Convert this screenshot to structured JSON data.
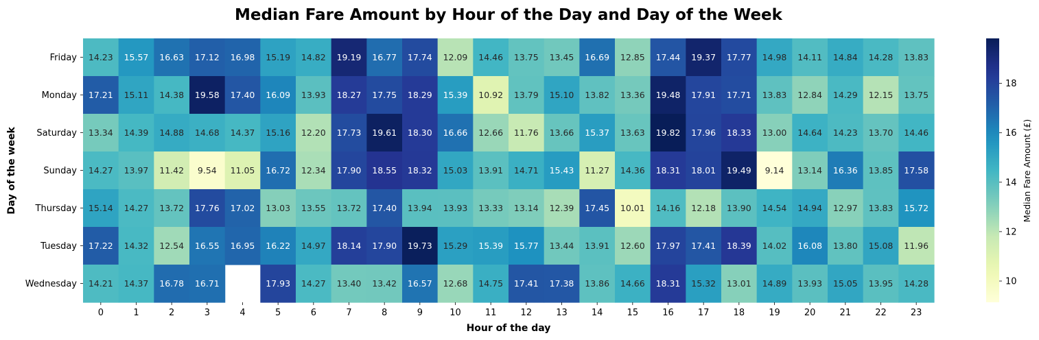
{
  "chart_data": {
    "type": "heatmap",
    "title": "Median Fare Amount by Hour of the Day and Day of the Week",
    "xlabel": "Hour of the day",
    "ylabel": "Day of the week",
    "colorbar_label": "Median Fare Amount (£)",
    "colorbar_ticks": [
      "10",
      "12",
      "14",
      "16",
      "18"
    ],
    "colorbar_range": [
      9.14,
      19.82
    ],
    "colormap": "YlGnBu",
    "x_categories": [
      "0",
      "1",
      "2",
      "3",
      "4",
      "5",
      "6",
      "7",
      "8",
      "9",
      "10",
      "11",
      "12",
      "13",
      "14",
      "15",
      "16",
      "17",
      "18",
      "19",
      "20",
      "21",
      "22",
      "23"
    ],
    "y_categories": [
      "Friday",
      "Monday",
      "Saturday",
      "Sunday",
      "Thursday",
      "Tuesday",
      "Wednesday"
    ],
    "values": [
      [
        14.23,
        15.57,
        16.63,
        17.12,
        16.98,
        15.19,
        14.82,
        19.19,
        16.77,
        17.74,
        12.09,
        14.46,
        13.75,
        13.45,
        16.69,
        12.85,
        17.44,
        19.37,
        17.77,
        14.98,
        14.11,
        14.84,
        14.28,
        13.83
      ],
      [
        17.21,
        15.11,
        14.38,
        19.58,
        17.4,
        16.09,
        13.93,
        18.27,
        17.75,
        18.29,
        15.39,
        10.92,
        13.79,
        15.1,
        13.82,
        13.36,
        19.48,
        17.91,
        17.71,
        13.83,
        12.84,
        14.29,
        12.15,
        13.75
      ],
      [
        13.34,
        14.39,
        14.88,
        14.68,
        14.37,
        15.16,
        12.2,
        17.73,
        19.61,
        18.3,
        16.66,
        12.66,
        11.76,
        13.66,
        15.37,
        13.63,
        19.82,
        17.96,
        18.33,
        13.0,
        14.64,
        14.23,
        13.7,
        14.46
      ],
      [
        14.27,
        13.97,
        11.42,
        9.54,
        11.05,
        16.72,
        12.34,
        17.9,
        18.55,
        18.32,
        15.03,
        13.91,
        14.71,
        15.43,
        11.27,
        14.36,
        18.31,
        18.01,
        19.49,
        9.14,
        13.14,
        16.36,
        13.85,
        17.58
      ],
      [
        15.14,
        14.27,
        13.72,
        17.76,
        17.02,
        13.03,
        13.55,
        13.72,
        17.4,
        13.94,
        13.93,
        13.33,
        13.14,
        12.39,
        17.45,
        10.01,
        14.16,
        12.18,
        13.9,
        14.54,
        14.94,
        12.97,
        13.83,
        15.72
      ],
      [
        17.22,
        14.32,
        12.54,
        16.55,
        16.95,
        16.22,
        14.97,
        18.14,
        17.9,
        19.73,
        15.29,
        15.39,
        15.77,
        13.44,
        13.91,
        12.6,
        17.97,
        17.41,
        18.39,
        14.02,
        16.08,
        13.8,
        15.08,
        11.96
      ],
      [
        14.21,
        14.37,
        16.78,
        16.71,
        null,
        17.93,
        14.27,
        13.4,
        13.42,
        16.57,
        12.68,
        14.75,
        17.41,
        17.38,
        13.86,
        14.66,
        18.31,
        15.32,
        13.01,
        14.89,
        13.93,
        15.05,
        13.95,
        14.28
      ]
    ]
  }
}
